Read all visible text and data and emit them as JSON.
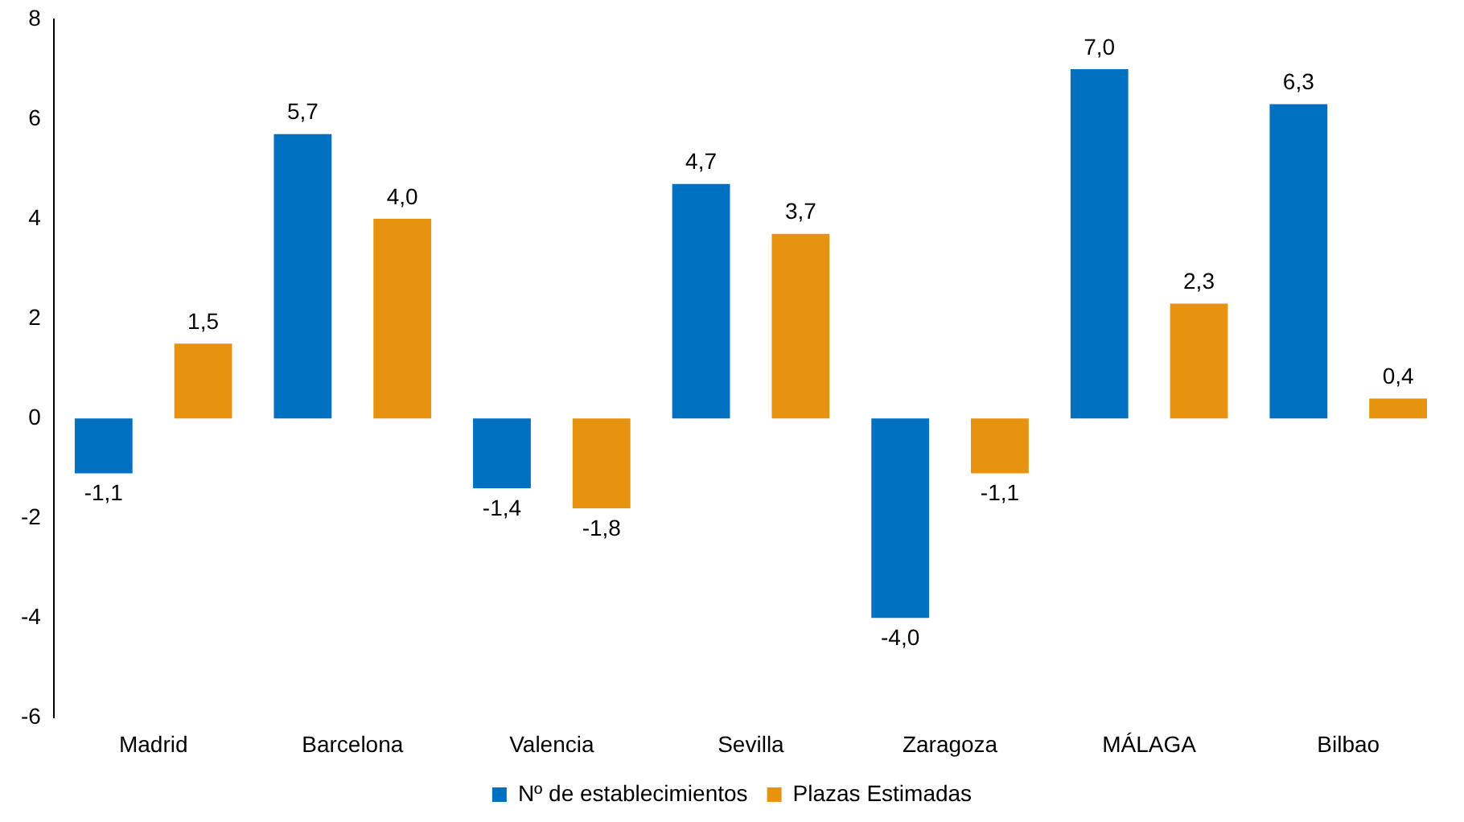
{
  "chart_data": {
    "type": "bar",
    "categories": [
      "Madrid",
      "Barcelona",
      "Valencia",
      "Sevilla",
      "Zaragoza",
      "MÁLAGA",
      "Bilbao"
    ],
    "series": [
      {
        "name": "Nº de establecimientos",
        "color": "#0070c0",
        "values": [
          -1.1,
          5.7,
          -1.4,
          4.7,
          -4.0,
          7.0,
          6.3
        ],
        "value_labels": [
          "-1,1",
          "5,7",
          "-1,4",
          "4,7",
          "-4,0",
          "7,0",
          "6,3"
        ]
      },
      {
        "name": "Plazas Estimadas",
        "color": "#e8930f",
        "values": [
          1.5,
          4.0,
          -1.8,
          3.7,
          -1.1,
          2.3,
          0.4
        ],
        "value_labels": [
          "1,5",
          "4,0",
          "-1,8",
          "3,7",
          "-1,1",
          "2,3",
          "0,4"
        ]
      }
    ],
    "ylim": [
      -6,
      8
    ],
    "yticks": [
      -6,
      -4,
      -2,
      0,
      2,
      4,
      6,
      8
    ],
    "grid": false,
    "legend": "bottom"
  }
}
